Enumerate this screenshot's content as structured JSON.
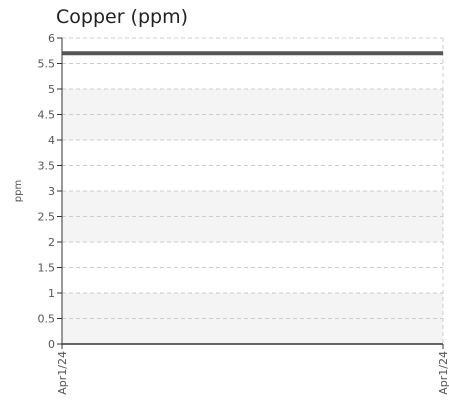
{
  "chart_data": {
    "type": "line",
    "title": "Copper (ppm)",
    "ylabel": "ppm",
    "xlabel": "",
    "x": [
      "Apr1/24",
      "Apr1/24"
    ],
    "series": [
      {
        "values": [
          5.7,
          5.7
        ]
      }
    ],
    "ylim": [
      0,
      6
    ],
    "yticks": [
      "0",
      "0.5",
      "1",
      "1.5",
      "2",
      "2.5",
      "3",
      "3.5",
      "4",
      "4.5",
      "5",
      "5.5",
      "6"
    ],
    "grid": true,
    "colors": {
      "line": "#555555",
      "band": "#f4f4f4",
      "grid": "#cccccc",
      "axis": "#333333"
    }
  }
}
